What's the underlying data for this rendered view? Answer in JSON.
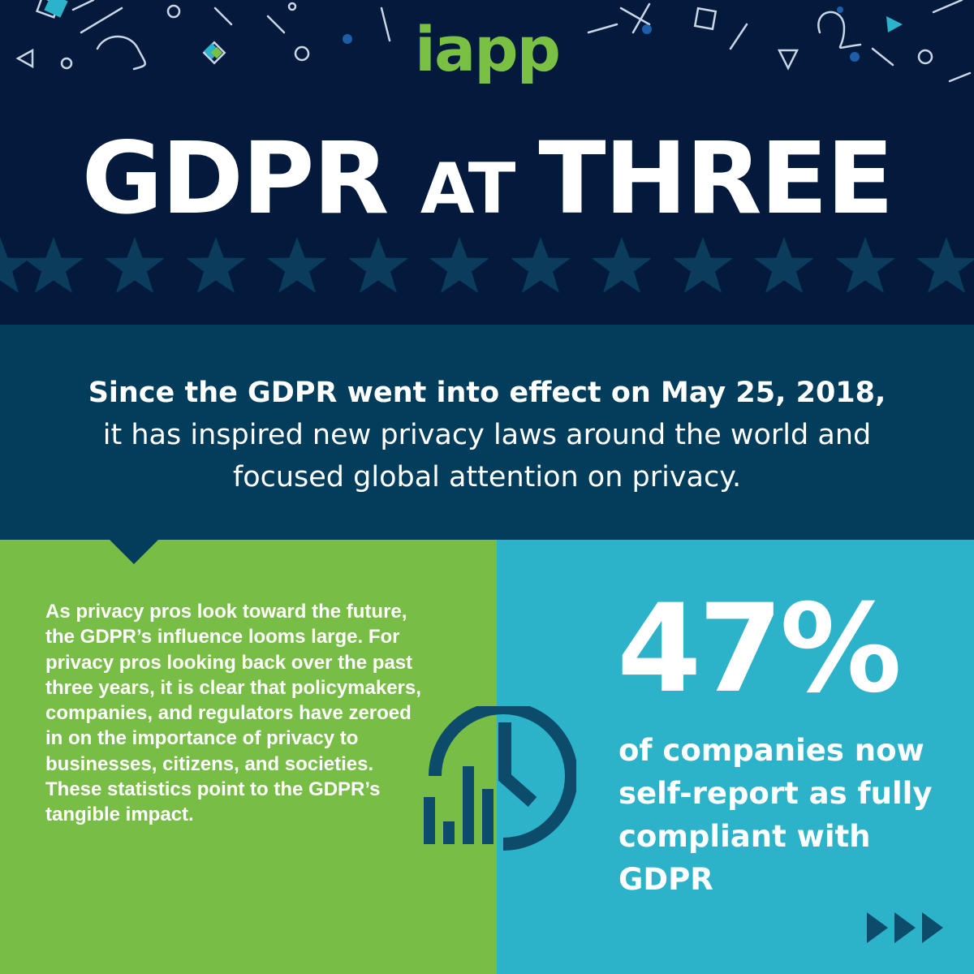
{
  "header": {
    "logo": "iapp",
    "title_part1": "GDPR ",
    "title_part2": "AT ",
    "title_part3": "THREE"
  },
  "intro": {
    "bold": "Since the GDPR went into effect on May 25, 2018,",
    "rest": "it has inspired new privacy laws around the world and focused global attention on privacy."
  },
  "body": {
    "text": "As privacy pros look toward the future, the GDPR’s influence looms large. For privacy pros looking back over the past three years, it is clear that policymakers, companies, and regulators have zeroed in on the importance of privacy to businesses, citizens, and societies. These statistics point to the GDPR’s tangible impact."
  },
  "stat": {
    "value": "47%",
    "caption": "of companies now self-report as fully compliant with GDPR"
  },
  "icons": {
    "clock": "clock-chart-icon",
    "arrows": "triple-arrow-icon",
    "stars": "star-icon"
  },
  "colors": {
    "navy": "#041a3c",
    "teal_dark": "#023d5c",
    "green": "#78bd45",
    "cyan": "#2cb3ca",
    "white": "#ffffff"
  }
}
